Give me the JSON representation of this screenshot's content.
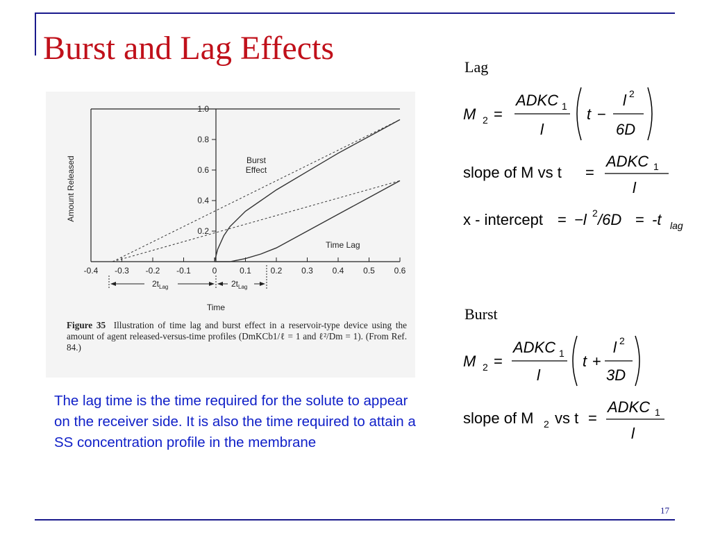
{
  "slide": {
    "title": "Burst and Lag Effects",
    "page_number": "17"
  },
  "figure": {
    "y_axis_label": "Amount Released",
    "x_axis_label": "Time",
    "y_ticks": [
      "1.0",
      "0.8",
      "0.6",
      "0.4",
      "0.2"
    ],
    "x_ticks": [
      "-0.4",
      "-0.3",
      "-0.2",
      "-0.1",
      "0",
      "0.1",
      "0.2",
      "0.3",
      "0.4",
      "0.5",
      "0.6"
    ],
    "burst_label_line1": "Burst",
    "burst_label_line2": "Effect",
    "lag_label": "Time Lag",
    "tlag_left_main": "2t",
    "tlag_left_sub": "Lag",
    "tlag_right_main": "2t",
    "tlag_right_sub": "Lag",
    "caption_label": "Figure 35",
    "caption_text": "Illustration of time lag and burst effect in a reservoir-type device using the amount of agent released-versus-time profiles (DmKCb1/ℓ = 1 and ℓ²/Dm = 1). (From Ref. 84.)"
  },
  "chart_data": {
    "type": "line",
    "title": "",
    "xlabel": "Time",
    "ylabel": "Amount Released",
    "xlim": [
      -0.4,
      0.6
    ],
    "ylim": [
      0,
      1.0
    ],
    "series": [
      {
        "name": "Burst Effect",
        "x": [
          0,
          0.01,
          0.03,
          0.05,
          0.1,
          0.15,
          0.2,
          0.3,
          0.4,
          0.5,
          0.6
        ],
        "y": [
          0,
          0.08,
          0.17,
          0.23,
          0.33,
          0.4,
          0.47,
          0.59,
          0.71,
          0.82,
          0.93
        ]
      },
      {
        "name": "Time Lag",
        "x": [
          0,
          0.05,
          0.1,
          0.15,
          0.2,
          0.3,
          0.4,
          0.5,
          0.6
        ],
        "y": [
          0,
          0.0,
          0.02,
          0.05,
          0.09,
          0.2,
          0.31,
          0.42,
          0.53
        ]
      },
      {
        "name": "",
        "x": [
          -0.33,
          0.6
        ],
        "y": [
          0,
          0.93
        ]
      },
      {
        "name": "",
        "x": [
          -0.33,
          0.6
        ],
        "y": [
          0,
          0.53
        ]
      }
    ]
  },
  "body_text": "The lag time is the time required for the solute to appear on the receiver side.  It is also the time required to attain a SS concentration profile in the membrane",
  "equations": {
    "lag_heading": "Lag",
    "lag_m2_lhs": "M",
    "lag_m2_sub": "2",
    "lag_m2_num": "ADKC",
    "lag_m2_num_sub": "1",
    "lag_m2_den": "l",
    "lag_m2_t": "t",
    "lag_m2_op": "−",
    "lag_m2_inner_num": "l",
    "lag_m2_inner_num_sup": "2",
    "lag_m2_inner_den": "6D",
    "slope_text": "slope of M vs t",
    "slope_num": "ADKC",
    "slope_num_sub": "1",
    "slope_den": "l",
    "intercept_text": "x - intercept",
    "intercept_rhs_a": "−l",
    "intercept_rhs_sup": "2",
    "intercept_rhs_b": "/6D",
    "intercept_rhs_c": "-t",
    "intercept_rhs_sub": "lag",
    "burst_heading": "Burst",
    "burst_m2_lhs": "M",
    "burst_m2_sub": "2",
    "burst_m2_num": "ADKC",
    "burst_m2_num_sub": "1",
    "burst_m2_den": "l",
    "burst_m2_t": "t",
    "burst_m2_op": "+",
    "burst_m2_inner_num": "l",
    "burst_m2_inner_num_sup": "2",
    "burst_m2_inner_den": "3D",
    "burst_slope_text_a": "slope of M",
    "burst_slope_sub": "2",
    "burst_slope_text_b": "vs t",
    "burst_slope_num": "ADKC",
    "burst_slope_num_sub": "1",
    "burst_slope_den": "l"
  }
}
